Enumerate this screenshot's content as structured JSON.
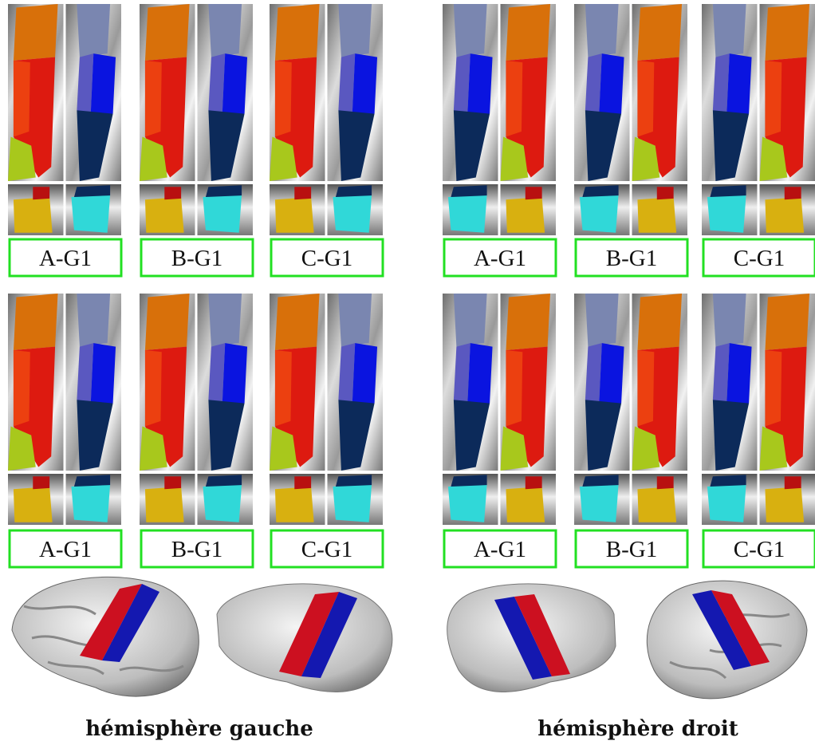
{
  "groups": [
    {
      "caption": "hémisphère gauche",
      "rows": [
        [
          "A-G1",
          "B-G1",
          "C-G1"
        ],
        [
          "A-G1",
          "B-G1",
          "C-G1"
        ]
      ]
    },
    {
      "caption": "hémisphère droit",
      "rows": [
        [
          "A-G1",
          "B-G1",
          "C-G1"
        ],
        [
          "A-G1",
          "B-G1",
          "C-G1"
        ]
      ]
    }
  ]
}
